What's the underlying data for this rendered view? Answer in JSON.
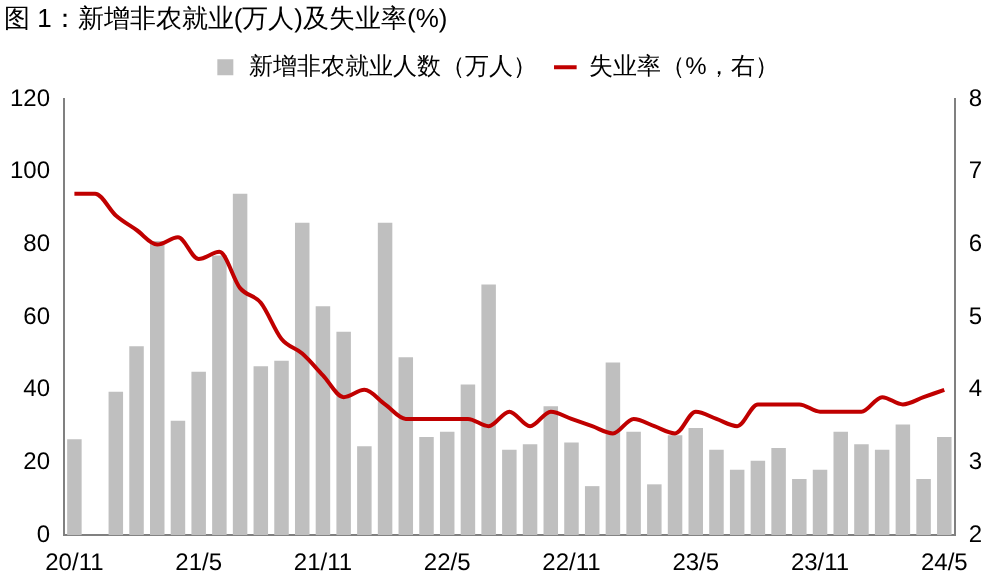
{
  "chart_data": {
    "type": "bar",
    "title": "图 1：新增非农就业(万人)及失业率(%)",
    "categories": [
      "20/11",
      null,
      null,
      null,
      null,
      null,
      "21/5",
      null,
      null,
      null,
      null,
      null,
      "21/11",
      null,
      null,
      null,
      null,
      null,
      "22/5",
      null,
      null,
      null,
      null,
      null,
      "22/11",
      null,
      null,
      null,
      null,
      null,
      "23/5",
      null,
      null,
      null,
      null,
      null,
      "23/11",
      null,
      null,
      null,
      null,
      null,
      "24/5"
    ],
    "series": [
      {
        "name": "新增非农就业人数（万人）",
        "color": "#bfbfbf",
        "values": [
          26.4,
          null,
          39.5,
          52,
          81,
          31.5,
          45,
          77,
          94,
          46.5,
          48,
          86,
          63,
          56,
          24.5,
          86,
          49,
          27,
          28.5,
          41.5,
          69,
          23.5,
          25,
          35.5,
          25.5,
          13.5,
          47.5,
          28.5,
          14,
          27.5,
          29.5,
          23.5,
          18,
          20.5,
          24,
          15.5,
          18,
          28.5,
          25,
          23.5,
          30.5,
          15.5,
          27
        ]
      },
      {
        "name": "失业率（%，右）",
        "type": "line",
        "axis": "y2",
        "color": "#c00000",
        "values": [
          6.7,
          6.7,
          6.4,
          6.2,
          6.0,
          6.1,
          5.8,
          5.9,
          5.4,
          5.2,
          4.7,
          4.5,
          4.2,
          3.9,
          4.0,
          3.8,
          3.6,
          3.6,
          3.6,
          3.6,
          3.5,
          3.7,
          3.5,
          3.7,
          3.6,
          3.5,
          3.4,
          3.6,
          3.5,
          3.4,
          3.7,
          3.6,
          3.5,
          3.8,
          3.8,
          3.8,
          3.7,
          3.7,
          3.7,
          3.9,
          3.8,
          3.9,
          4.0
        ]
      }
    ],
    "ylim": [
      0,
      120
    ],
    "yticks": [
      0,
      20,
      40,
      60,
      80,
      100,
      120
    ],
    "y2lim": [
      2,
      8
    ],
    "y2ticks": [
      2,
      3,
      4,
      5,
      6,
      7,
      8
    ],
    "grid": false,
    "legend": "top",
    "marker": "none"
  }
}
